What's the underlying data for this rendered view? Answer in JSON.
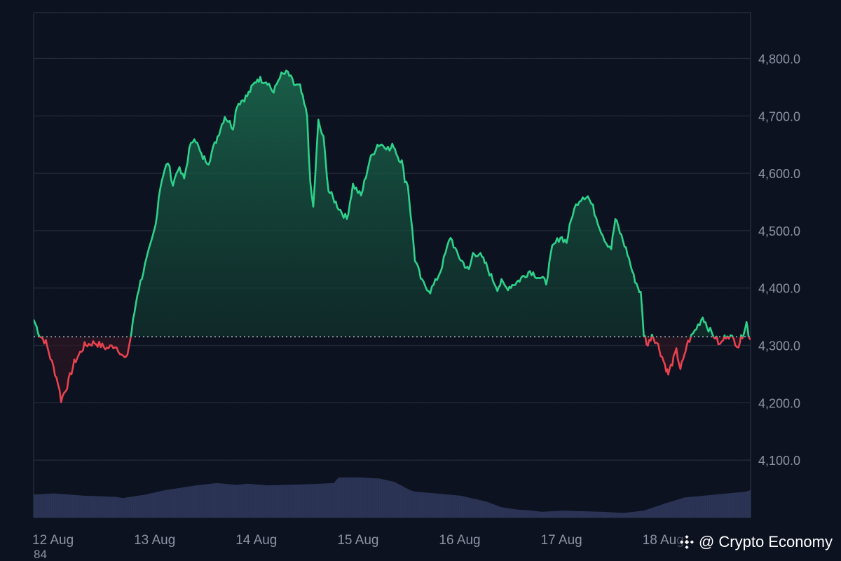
{
  "chart_data": {
    "type": "area",
    "title": "",
    "xlabel": "",
    "ylabel": "",
    "ylim": [
      4000,
      4880
    ],
    "baseline": 4315,
    "x_ticks": [
      "12 Aug",
      "13 Aug",
      "14 Aug",
      "15 Aug",
      "16 Aug",
      "17 Aug",
      "18 Aug"
    ],
    "y_ticks": [
      "4,100.0",
      "4,200.0",
      "4,300.0",
      "4,400.0",
      "4,500.0",
      "4,600.0",
      "4,700.0",
      "4,800.0"
    ],
    "y_tick_values": [
      4100,
      4200,
      4300,
      4400,
      4500,
      4600,
      4700,
      4800
    ],
    "x_range_days": [
      0,
      7.05
    ],
    "grid": true,
    "series": [
      {
        "type": "line",
        "values_x_days": [
          0.0,
          0.06,
          0.12,
          0.18,
          0.24,
          0.27,
          0.33,
          0.4,
          0.5,
          0.6,
          0.72,
          0.8,
          0.85,
          0.88,
          0.91,
          0.95,
          1.02,
          1.08,
          1.16,
          1.2,
          1.23,
          1.26,
          1.32,
          1.37,
          1.42,
          1.48,
          1.53,
          1.58,
          1.65,
          1.72,
          1.78,
          1.88,
          1.96,
          2.0,
          2.1,
          2.2,
          2.3,
          2.36,
          2.42,
          2.5,
          2.56,
          2.62,
          2.66,
          2.69,
          2.72,
          2.75,
          2.8,
          2.85,
          2.9,
          3.0,
          3.08,
          3.14,
          3.22,
          3.3,
          3.38,
          3.45,
          3.5,
          3.54,
          3.58,
          3.62,
          3.65,
          3.68,
          3.75,
          3.82,
          3.9,
          3.95,
          4.0,
          4.05,
          4.1,
          4.16,
          4.2,
          4.24,
          4.28,
          4.32,
          4.38,
          4.45,
          4.5,
          4.56,
          4.6,
          4.65,
          4.75,
          4.88,
          4.96,
          5.04,
          5.1,
          5.18,
          5.24,
          5.3,
          5.35,
          5.4,
          5.45,
          5.5,
          5.58,
          5.63,
          5.68,
          5.72,
          5.78,
          5.84,
          5.9,
          5.97,
          6.0,
          6.04,
          6.08,
          6.14,
          6.18,
          6.22,
          6.24,
          6.28,
          6.32,
          6.36,
          6.4,
          6.42,
          6.45,
          6.5,
          6.55,
          6.58,
          6.62,
          6.67,
          6.7,
          6.75,
          6.78,
          6.82,
          6.87,
          6.93,
          6.97,
          7.01,
          7.03,
          7.05
        ],
        "values": [
          4345,
          4318,
          4305,
          4270,
          4235,
          4205,
          4230,
          4270,
          4300,
          4305,
          4295,
          4300,
          4290,
          4280,
          4275,
          4310,
          4390,
          4430,
          4480,
          4510,
          4560,
          4590,
          4620,
          4580,
          4610,
          4590,
          4640,
          4665,
          4630,
          4620,
          4650,
          4700,
          4680,
          4720,
          4735,
          4765,
          4760,
          4740,
          4770,
          4775,
          4755,
          4750,
          4720,
          4700,
          4580,
          4540,
          4690,
          4660,
          4570,
          4540,
          4520,
          4580,
          4560,
          4620,
          4650,
          4650,
          4640,
          4650,
          4630,
          4620,
          4590,
          4580,
          4450,
          4410,
          4395,
          4410,
          4430,
          4460,
          4490,
          4460,
          4450,
          4440,
          4430,
          4460,
          4460,
          4440,
          4420,
          4400,
          4410,
          4400,
          4410,
          4430,
          4420,
          4410,
          4470,
          4490,
          4480,
          4530,
          4550,
          4560,
          4560,
          4540,
          4500,
          4480,
          4470,
          4520,
          4490,
          4460,
          4420,
          4390,
          4320,
          4300,
          4320,
          4300,
          4280,
          4260,
          4250,
          4270,
          4290,
          4260,
          4280,
          4300,
          4310,
          4325,
          4340,
          4350,
          4335,
          4320,
          4315,
          4300,
          4310,
          4320,
          4312,
          4300,
          4318,
          4340,
          4320,
          4310
        ]
      },
      {
        "type": "volume",
        "values_x_days": [
          0.0,
          0.2,
          0.5,
          0.8,
          0.88,
          1.1,
          1.3,
          1.6,
          1.8,
          2.0,
          2.1,
          2.3,
          2.7,
          2.95,
          3.0,
          3.2,
          3.4,
          3.55,
          3.7,
          3.75,
          3.9,
          4.2,
          4.45,
          4.6,
          4.75,
          4.9,
          5.0,
          5.2,
          5.6,
          5.8,
          6.0,
          6.2,
          6.4,
          6.7,
          7.0,
          7.05
        ],
        "values": [
          4040,
          4042,
          4038,
          4036,
          4034,
          4040,
          4048,
          4056,
          4060,
          4057,
          4059,
          4056,
          4058,
          4060,
          4070,
          4070,
          4068,
          4062,
          4048,
          4045,
          4043,
          4038,
          4028,
          4018,
          4014,
          4012,
          4010,
          4012,
          4010,
          4008,
          4012,
          4024,
          4035,
          4040,
          4045,
          4048
        ]
      }
    ]
  },
  "watermark": {
    "text": "@ Crypto Economy",
    "icon": "binance-diamond-icon"
  },
  "stray_label": "84",
  "colors": {
    "background": "#0c1220",
    "up_line": "#2ed18a",
    "down_line": "#e8424f",
    "volume": "#2c3556",
    "grid": "#252c3d"
  }
}
